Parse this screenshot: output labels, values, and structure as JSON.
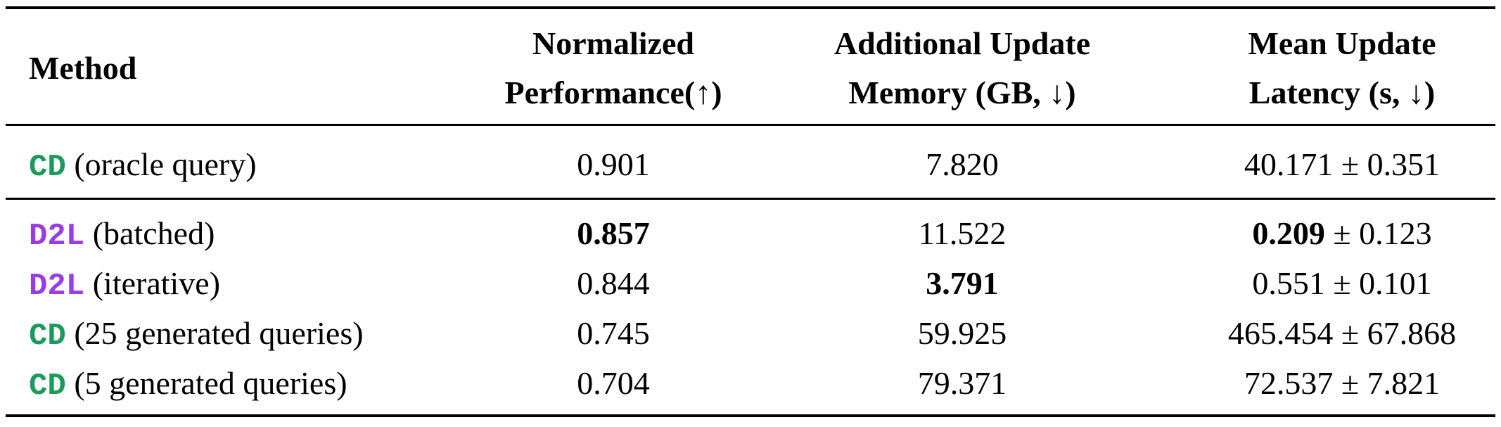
{
  "colors": {
    "cd": "#1b9a5c",
    "d2l": "#9a3be6"
  },
  "headers": {
    "method": "Method",
    "perf": [
      "Normalized",
      "Performance(↑)"
    ],
    "memory": [
      "Additional Update",
      "Memory (GB, ↓)"
    ],
    "latency": [
      "Mean Update",
      "Latency (s, ↓)"
    ]
  },
  "rows": [
    {
      "tag": "CD",
      "tag_color": "cd",
      "desc": "(oracle query)",
      "perf": "0.901",
      "perf_bold": false,
      "memory": "7.820",
      "memory_bold": false,
      "lat_mean": "40.171",
      "lat_bold": false,
      "lat_std": "0.351"
    },
    {
      "tag": "D2L",
      "tag_color": "d2l",
      "desc": "(batched)",
      "perf": "0.857",
      "perf_bold": true,
      "memory": "11.522",
      "memory_bold": false,
      "lat_mean": "0.209",
      "lat_bold": true,
      "lat_std": "0.123"
    },
    {
      "tag": "D2L",
      "tag_color": "d2l",
      "desc": "(iterative)",
      "perf": "0.844",
      "perf_bold": false,
      "memory": "3.791",
      "memory_bold": true,
      "lat_mean": "0.551",
      "lat_bold": false,
      "lat_std": "0.101"
    },
    {
      "tag": "CD",
      "tag_color": "cd",
      "desc": "(25 generated queries)",
      "perf": "0.745",
      "perf_bold": false,
      "memory": "59.925",
      "memory_bold": false,
      "lat_mean": "465.454",
      "lat_bold": false,
      "lat_std": "67.868"
    },
    {
      "tag": "CD",
      "tag_color": "cd",
      "desc": "(5 generated queries)",
      "perf": "0.704",
      "perf_bold": false,
      "memory": "79.371",
      "memory_bold": false,
      "lat_mean": "72.537",
      "lat_bold": false,
      "lat_std": "7.821"
    }
  ],
  "pm": "±"
}
